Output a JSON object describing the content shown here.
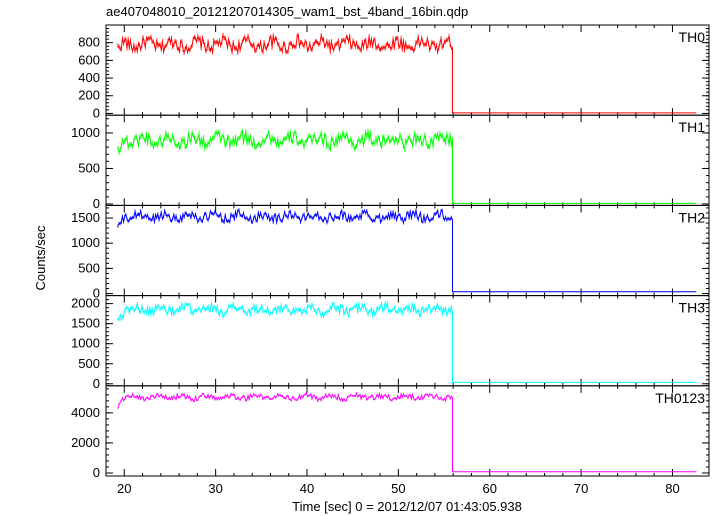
{
  "chart_data": {
    "type": "line",
    "title": "ae407048010_20121207014305_wam1_bst_4band_16bin.qdp",
    "xlabel": "Time [sec] 0 = 2012/12/07 01:43:05.938",
    "ylabel": "Counts/sec",
    "xlim": [
      18,
      84
    ],
    "xticks": [
      "20",
      "30",
      "40",
      "50",
      "60",
      "70",
      "80"
    ],
    "burst_end_x": 56.0,
    "series": [
      {
        "name": "TH0",
        "color": "#ff0000",
        "ylim": [
          -20,
          1000
        ],
        "yticks": [
          "0",
          "200",
          "400",
          "600",
          "800"
        ],
        "yticks_values": [
          0,
          200,
          400,
          600,
          800
        ],
        "onset_value": 720,
        "mean": 780,
        "amplitude": 70,
        "post_value": 6
      },
      {
        "name": "TH1",
        "color": "#00ff00",
        "ylim": [
          -20,
          1250
        ],
        "yticks": [
          "0",
          "500",
          "1000"
        ],
        "yticks_values": [
          0,
          500,
          1000
        ],
        "onset_value": 720,
        "mean": 900,
        "amplitude": 90,
        "post_value": 8
      },
      {
        "name": "TH2",
        "color": "#0000ff",
        "ylim": [
          -40,
          1750
        ],
        "yticks": [
          "0",
          "500",
          "1000",
          "1500"
        ],
        "yticks_values": [
          0,
          500,
          1000,
          1500
        ],
        "onset_value": 1300,
        "mean": 1530,
        "amplitude": 90,
        "post_value": 35
      },
      {
        "name": "TH3",
        "color": "#00ffff",
        "ylim": [
          -50,
          2200
        ],
        "yticks": [
          "0",
          "500",
          "1000",
          "1500",
          "2000"
        ],
        "yticks_values": [
          0,
          500,
          1000,
          1500,
          2000
        ],
        "onset_value": 1650,
        "mean": 1850,
        "amplitude": 120,
        "post_value": 35
      },
      {
        "name": "TH0123",
        "color": "#ff00ff",
        "ylim": [
          -200,
          5800
        ],
        "yticks": [
          "0",
          "2000",
          "4000"
        ],
        "yticks_values": [
          0,
          2000,
          4000
        ],
        "onset_value": 4450,
        "mean": 5050,
        "amplitude": 180,
        "post_value": 80
      }
    ]
  }
}
